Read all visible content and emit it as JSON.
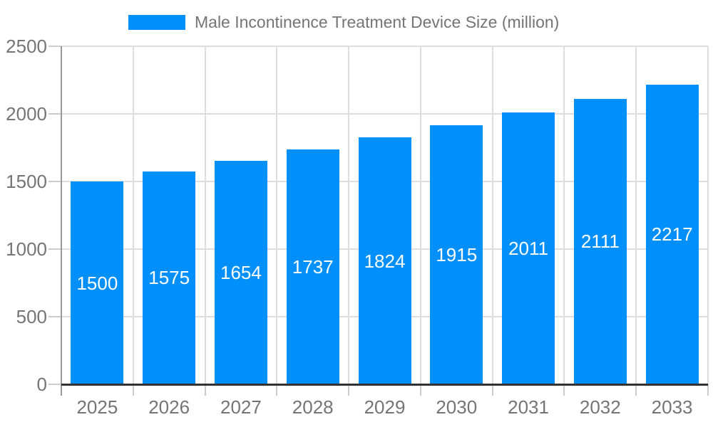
{
  "chart_data": {
    "type": "bar",
    "series_name": "Male Incontinence Treatment Device Size (million)",
    "categories": [
      "2025",
      "2026",
      "2027",
      "2028",
      "2029",
      "2030",
      "2031",
      "2032",
      "2033"
    ],
    "values": [
      1500,
      1575,
      1654,
      1737,
      1824,
      1915,
      2011,
      2111,
      2217
    ],
    "title": "",
    "xlabel": "",
    "ylabel": "",
    "ylim": [
      0,
      2500
    ],
    "yticks": [
      0,
      500,
      1000,
      1500,
      2000,
      2500
    ],
    "grid": "horizontal-and-vertical",
    "legend_position": "top",
    "value_label_position": "inside-center"
  },
  "colors": {
    "bar": "#008FFB",
    "gridline": "#dddddd",
    "tick": "#cccccc",
    "y_axis_line": "#999999",
    "baseline": "#333333",
    "axis_label": "#757575",
    "value_label": "#ffffff",
    "legend_label": "#757575",
    "background": "#ffffff"
  }
}
